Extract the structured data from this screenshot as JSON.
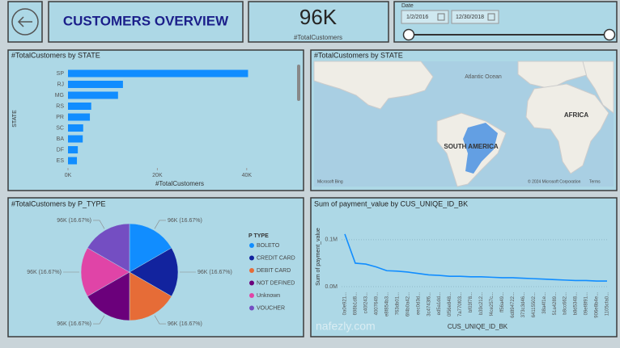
{
  "header": {
    "title": "CUSTOMERS OVERVIEW",
    "card_value": "96K",
    "card_label": "#TotalCustomers"
  },
  "slicer": {
    "label": "Date",
    "start": "1/2/2016",
    "end": "12/30/2018"
  },
  "map": {
    "title": "#TotalCustomers by STATE",
    "ocean": "Atlantic Ocean",
    "continent_1": "AFRICA",
    "continent_2": "SOUTH AMERICA",
    "brand": "Microsoft Bing",
    "credit": "© 2024 Microsoft Corporation",
    "terms": "Terms"
  },
  "watermark": "nafezly.com",
  "chart_data": [
    {
      "type": "bar",
      "title": "#TotalCustomers by STATE",
      "x_label": "#TotalCustomers",
      "y_label": "STATE",
      "categories": [
        "SP",
        "RJ",
        "MG",
        "RS",
        "PR",
        "SC",
        "BA",
        "DF",
        "ES"
      ],
      "values": [
        40300,
        12300,
        11200,
        5200,
        4900,
        3400,
        3300,
        2200,
        2000
      ],
      "color": "#118DFF",
      "xlim": [
        0,
        50000
      ],
      "xticks": [
        {
          "value": 0,
          "label": "0K"
        },
        {
          "value": 20000,
          "label": "20K"
        },
        {
          "value": 40000,
          "label": "40K"
        }
      ]
    },
    {
      "type": "pie",
      "title": "#TotalCustomers by P_TYPE",
      "legend_title": "P TYPE",
      "categories": [
        "BOLETO",
        "CREDIT CARD",
        "DEBIT CARD",
        "NOT DEFINED",
        "Unknown",
        "VOUCHER"
      ],
      "values": [
        16.67,
        16.67,
        16.67,
        16.67,
        16.67,
        16.67
      ],
      "value_labels": [
        "96K (16.67%)",
        "96K (16.67%)",
        "96K (16.67%)",
        "96K (16.67%)",
        "96K (16.67%)",
        "96K (16.67%)"
      ],
      "colors": [
        "#118DFF",
        "#12239E",
        "#E66C37",
        "#6B007B",
        "#E044A7",
        "#744EC2"
      ]
    },
    {
      "type": "line",
      "title": "Sum of payment_value by CUS_UNIQE_ID_BK",
      "x_label": "CUS_UNIQE_ID_BK",
      "y_label": "Sum of payment_value",
      "categories": [
        "0a0e921...",
        "698b1d8...",
        "c40f243...",
        "4007649...",
        "e8f854b3...",
        "763db01...",
        "6f4b0a42...",
        "eec0d3d...",
        "3c4743f6...",
        "ed5a1dd...",
        "0f56e848...",
        "7a770f03...",
        "bf03f78...",
        "b39c212...",
        "f4ce257c...",
        "ff56a49...",
        "6d894722...",
        "373c3d46...",
        "64115502...",
        "38a4f1e...",
        "51a4289...",
        "b8cc662...",
        "b8d5348...",
        "09ef8f91...",
        "906e8b4e...",
        "1105cfa0..."
      ],
      "values": [
        112000,
        50000,
        48000,
        42000,
        34000,
        33000,
        31000,
        28000,
        25000,
        24000,
        22000,
        22000,
        21000,
        21000,
        20000,
        19000,
        19000,
        18000,
        17000,
        16000,
        15000,
        14000,
        13000,
        13000,
        12000,
        12000
      ],
      "color": "#118DFF",
      "ylim": [
        0,
        160000
      ],
      "yticks": [
        {
          "value": 0,
          "label": "0.0M"
        },
        {
          "value": 100000,
          "label": "0.1M"
        }
      ]
    }
  ]
}
